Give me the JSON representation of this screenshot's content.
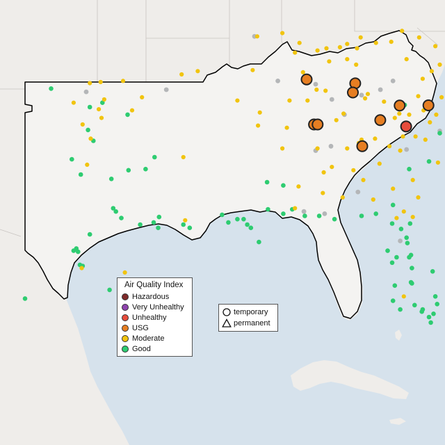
{
  "colors": {
    "ocean": "#d6e2ec",
    "land": "#efedea",
    "region": "#f4f3f1",
    "state_border": "#c8c4c0",
    "region_outline": "#000000",
    "site_stroke": "#222222",
    "Hazardous": "#7e2a2a",
    "Very Unhealthy": "#8e44ad",
    "Unhealthy": "#e74c3c",
    "USG": "#e67e22",
    "Moderate": "#f1c40f",
    "Good": "#2ecc71",
    "offline": "#b4b6b8"
  },
  "legend": {
    "title": "Air Quality Index",
    "items": [
      {
        "key": "Hazardous",
        "label": "Hazardous",
        "color": "#7e2a2a"
      },
      {
        "key": "Very Unhealthy",
        "label": "Very Unhealthy",
        "color": "#8e44ad"
      },
      {
        "key": "Unhealthy",
        "label": "Unhealthy",
        "color": "#e74c3c"
      },
      {
        "key": "USG",
        "label": "USG",
        "color": "#e67e22"
      },
      {
        "key": "Moderate",
        "label": "Moderate",
        "color": "#f1c40f"
      },
      {
        "key": "Good",
        "label": "Good",
        "color": "#2ecc71"
      }
    ]
  },
  "shape_legend": {
    "items": [
      {
        "icon": "circle-icon",
        "label": "temporary"
      },
      {
        "icon": "triangle-icon",
        "label": "permanent"
      }
    ]
  },
  "sites": {
    "highlighted": [
      {
        "cat": "USG",
        "lon": -87.35,
        "lat": 36.62
      },
      {
        "cat": "USG",
        "lon": -84.65,
        "lat": 36.44
      },
      {
        "cat": "USG",
        "lon": -84.78,
        "lat": 36.02
      },
      {
        "cat": "USG",
        "lon": -82.18,
        "lat": 35.42
      },
      {
        "cat": "USG",
        "lon": -80.58,
        "lat": 35.43
      },
      {
        "cat": "USG",
        "lon": -83.26,
        "lat": 34.75
      },
      {
        "cat": "Unhealthy",
        "lon": -81.82,
        "lat": 34.46
      },
      {
        "cat": "USG",
        "lon": -86.94,
        "lat": 34.55
      },
      {
        "cat": "USG",
        "lon": -86.74,
        "lat": 34.55
      },
      {
        "cat": "USG",
        "lon": -84.26,
        "lat": 33.55
      }
    ],
    "good": [
      [
        -101.55,
        36.2
      ],
      [
        -99.4,
        35.35
      ],
      [
        -98.7,
        35.55
      ],
      [
        -97.3,
        35.0
      ],
      [
        -99.5,
        34.3
      ],
      [
        -99.2,
        33.8
      ],
      [
        -100.4,
        32.95
      ],
      [
        -99.9,
        32.25
      ],
      [
        -98.2,
        32.05
      ],
      [
        -97.25,
        32.45
      ],
      [
        -96.3,
        32.5
      ],
      [
        -95.8,
        33.05
      ],
      [
        -98.1,
        30.7
      ],
      [
        -97.95,
        30.55
      ],
      [
        -97.65,
        30.25
      ],
      [
        -99.4,
        29.5
      ],
      [
        -100.15,
        28.85
      ],
      [
        -100.05,
        28.7
      ],
      [
        -100.3,
        28.75
      ],
      [
        -99.8,
        28.05
      ],
      [
        -99.95,
        28.1
      ],
      [
        -96.6,
        29.95
      ],
      [
        -95.6,
        29.8
      ],
      [
        -95.85,
        30.05
      ],
      [
        -95.55,
        30.3
      ],
      [
        -94.2,
        29.95
      ],
      [
        -93.85,
        29.8
      ],
      [
        -103.0,
        26.55
      ],
      [
        -98.3,
        26.95
      ],
      [
        -97.4,
        25.55
      ],
      [
        -92.05,
        30.4
      ],
      [
        -91.7,
        30.05
      ],
      [
        -91.2,
        30.2
      ],
      [
        -90.85,
        30.2
      ],
      [
        -90.65,
        29.95
      ],
      [
        -90.45,
        29.8
      ],
      [
        -90.0,
        29.15
      ],
      [
        -89.5,
        30.65
      ],
      [
        -88.65,
        30.45
      ],
      [
        -88.15,
        30.65
      ],
      [
        -87.45,
        30.35
      ],
      [
        -86.65,
        30.35
      ],
      [
        -85.8,
        30.2
      ],
      [
        -84.3,
        30.35
      ],
      [
        -83.5,
        30.45
      ],
      [
        -82.6,
        30.0
      ],
      [
        -82.1,
        29.75
      ],
      [
        -81.8,
        29.35
      ],
      [
        -81.65,
        28.45
      ],
      [
        -81.55,
        28.55
      ],
      [
        -81.5,
        27.95
      ],
      [
        -81.55,
        27.3
      ],
      [
        -81.5,
        27.25
      ],
      [
        -82.45,
        27.15
      ],
      [
        -82.55,
        26.45
      ],
      [
        -82.15,
        26.05
      ],
      [
        -81.35,
        26.25
      ],
      [
        -80.9,
        26.05
      ],
      [
        -80.55,
        25.7
      ],
      [
        -80.45,
        25.45
      ],
      [
        -80.3,
        25.85
      ],
      [
        -80.1,
        26.3
      ],
      [
        -80.95,
        25.95
      ],
      [
        -82.35,
        28.45
      ],
      [
        -81.75,
        29.1
      ],
      [
        -81.6,
        30.0
      ],
      [
        -80.55,
        32.85
      ],
      [
        -81.65,
        32.5
      ],
      [
        -79.95,
        34.15
      ],
      [
        -88.65,
        31.75
      ],
      [
        -89.55,
        31.9
      ],
      [
        -77.05,
        38.85
      ],
      [
        -77.3,
        39.25
      ],
      [
        -78.6,
        38.25
      ],
      [
        -81.9,
        35.45
      ],
      [
        -82.55,
        30.85
      ],
      [
        -80.2,
        26.65
      ],
      [
        -80.35,
        27.8
      ],
      [
        -82.6,
        28.2
      ],
      [
        -82.85,
        28.75
      ]
    ],
    "moderate": [
      [
        -99.4,
        36.45
      ],
      [
        -98.8,
        36.5
      ],
      [
        -97.55,
        36.55
      ],
      [
        -98.6,
        35.7
      ],
      [
        -98.9,
        35.25
      ],
      [
        -98.75,
        34.85
      ],
      [
        -97.05,
        35.2
      ],
      [
        -96.5,
        35.8
      ],
      [
        -100.3,
        35.55
      ],
      [
        -99.8,
        34.55
      ],
      [
        -99.55,
        32.7
      ],
      [
        -99.35,
        33.9
      ],
      [
        -94.3,
        36.85
      ],
      [
        -93.4,
        37.0
      ],
      [
        -94.2,
        33.05
      ],
      [
        -94.1,
        30.15
      ],
      [
        -97.3,
        26.0
      ],
      [
        -99.85,
        27.95
      ],
      [
        -97.45,
        27.75
      ],
      [
        -91.2,
        35.65
      ],
      [
        -90.35,
        37.05
      ],
      [
        -90.1,
        38.6
      ],
      [
        -88.7,
        38.75
      ],
      [
        -87.75,
        38.3
      ],
      [
        -86.75,
        37.95
      ],
      [
        -86.25,
        38.05
      ],
      [
        -87.55,
        36.95
      ],
      [
        -88.0,
        37.85
      ],
      [
        -86.1,
        37.45
      ],
      [
        -85.1,
        38.25
      ],
      [
        -84.55,
        38.05
      ],
      [
        -84.35,
        38.55
      ],
      [
        -85.5,
        38.1
      ],
      [
        -83.5,
        38.3
      ],
      [
        -82.65,
        38.35
      ],
      [
        -82.05,
        38.85
      ],
      [
        -81.1,
        38.55
      ],
      [
        -80.2,
        38.15
      ],
      [
        -81.8,
        37.55
      ],
      [
        -78.85,
        38.9
      ],
      [
        -78.9,
        38.3
      ],
      [
        -79.3,
        37.7
      ],
      [
        -77.25,
        37.55
      ],
      [
        -77.5,
        37.2
      ],
      [
        -77.05,
        37.8
      ],
      [
        -78.2,
        36.8
      ],
      [
        -79.95,
        37.3
      ],
      [
        -80.4,
        37.0
      ],
      [
        -80.9,
        36.65
      ],
      [
        -78.7,
        36.2
      ],
      [
        -77.95,
        35.95
      ],
      [
        -79.1,
        36.15
      ],
      [
        -79.85,
        35.8
      ],
      [
        -80.85,
        35.2
      ],
      [
        -81.15,
        35.85
      ],
      [
        -80.15,
        35.0
      ],
      [
        -78.35,
        35.5
      ],
      [
        -77.15,
        35.15
      ],
      [
        -76.25,
        36.55
      ],
      [
        -76.35,
        36.95
      ],
      [
        -76.0,
        36.85
      ],
      [
        -76.05,
        36.0
      ],
      [
        -75.8,
        38.0
      ],
      [
        -76.4,
        38.85
      ],
      [
        -76.1,
        38.7
      ],
      [
        -75.55,
        39.0
      ],
      [
        -75.45,
        39.7
      ],
      [
        -75.35,
        39.85
      ],
      [
        -75.2,
        39.75
      ],
      [
        -77.75,
        39.05
      ],
      [
        -76.55,
        38.4
      ],
      [
        -83.05,
        35.6
      ],
      [
        -83.95,
        35.95
      ],
      [
        -84.1,
        35.75
      ],
      [
        -85.3,
        35.05
      ],
      [
        -85.7,
        34.75
      ],
      [
        -86.3,
        36.1
      ],
      [
        -86.8,
        36.15
      ],
      [
        -87.3,
        35.65
      ],
      [
        -88.3,
        35.65
      ],
      [
        -89.95,
        35.1
      ],
      [
        -90.05,
        34.5
      ],
      [
        -88.45,
        34.4
      ],
      [
        -88.7,
        33.45
      ],
      [
        -86.75,
        33.45
      ],
      [
        -86.4,
        32.35
      ],
      [
        -85.95,
        32.6
      ],
      [
        -86.45,
        31.4
      ],
      [
        -85.35,
        31.2
      ],
      [
        -87.8,
        31.7
      ],
      [
        -88.0,
        30.7
      ],
      [
        -84.3,
        33.85
      ],
      [
        -84.45,
        33.7
      ],
      [
        -83.55,
        33.9
      ],
      [
        -82.75,
        33.55
      ],
      [
        -82.15,
        33.35
      ],
      [
        -83.3,
        32.75
      ],
      [
        -84.2,
        32.0
      ],
      [
        -83.65,
        31.1
      ],
      [
        -81.45,
        32.0
      ],
      [
        -81.15,
        31.2
      ],
      [
        -81.45,
        30.3
      ],
      [
        -82.55,
        31.6
      ],
      [
        -84.75,
        32.45
      ],
      [
        -85.1,
        33.45
      ],
      [
        -80.05,
        32.8
      ],
      [
        -80.75,
        33.85
      ],
      [
        -81.3,
        34.0
      ],
      [
        -80.5,
        34.65
      ],
      [
        -81.65,
        35.0
      ],
      [
        -82.45,
        34.85
      ],
      [
        -82.0,
        34.0
      ],
      [
        -82.2,
        35.05
      ],
      [
        -79.45,
        33.85
      ],
      [
        -78.9,
        33.65
      ],
      [
        -78.3,
        34.25
      ],
      [
        -77.9,
        34.2
      ],
      [
        -81.95,
        26.65
      ],
      [
        -82.35,
        30.25
      ],
      [
        -81.95,
        30.55
      ],
      [
        -84.6,
        37.3
      ],
      [
        -85.1,
        37.55
      ]
    ],
    "offline": [
      [
        -99.6,
        36.05
      ],
      [
        -95.15,
        36.15
      ],
      [
        -90.25,
        38.6
      ],
      [
        -88.95,
        36.55
      ],
      [
        -86.85,
        36.4
      ],
      [
        -85.95,
        35.7
      ],
      [
        -84.3,
        35.9
      ],
      [
        -83.25,
        36.15
      ],
      [
        -82.55,
        36.55
      ],
      [
        -85.25,
        35.0
      ],
      [
        -86.0,
        33.55
      ],
      [
        -86.85,
        33.35
      ],
      [
        -84.5,
        31.45
      ],
      [
        -87.5,
        30.55
      ],
      [
        -86.35,
        30.45
      ],
      [
        -82.15,
        29.2
      ],
      [
        -81.8,
        33.4
      ],
      [
        -79.95,
        34.25
      ]
    ]
  }
}
